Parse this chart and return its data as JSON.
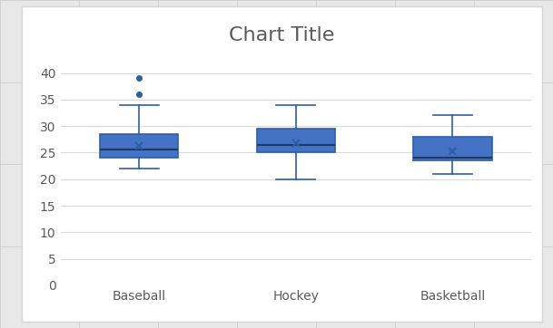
{
  "title": "Chart Title",
  "categories": [
    "Baseball",
    "Hockey",
    "Basketball"
  ],
  "box_data": [
    {
      "med": 25.5,
      "q1": 24.0,
      "q3": 28.5,
      "whislo": 22.0,
      "whishi": 34.0,
      "mean": 26.2,
      "fliers": [
        36.0,
        39.0
      ]
    },
    {
      "med": 26.5,
      "q1": 25.0,
      "q3": 29.5,
      "whislo": 20.0,
      "whishi": 34.0,
      "mean": 26.8,
      "fliers": []
    },
    {
      "med": 24.0,
      "q1": 23.5,
      "q3": 28.0,
      "whislo": 21.0,
      "whishi": 32.0,
      "mean": 25.2,
      "fliers": []
    }
  ],
  "box_color": "#2E5FA3",
  "box_face_color": "#4472C4",
  "median_color": "#1F3864",
  "whisker_color": "#2E5FA3",
  "cap_color": "#2E5FA3",
  "flier_color": "#2E5FA3",
  "mean_color": "#2E5FA3",
  "plot_bg_color": "#FFFFFF",
  "chart_frame_color": "#D4D4D4",
  "outer_bg_color": "#E8E8E8",
  "excel_grid_color": "#C8C8C8",
  "grid_color": "#D9D9D9",
  "title_color": "#595959",
  "tick_color": "#595959",
  "title_fontsize": 16,
  "tick_fontsize": 10,
  "ylim": [
    0,
    42
  ],
  "yticks": [
    0,
    5,
    10,
    15,
    20,
    25,
    30,
    35,
    40
  ]
}
